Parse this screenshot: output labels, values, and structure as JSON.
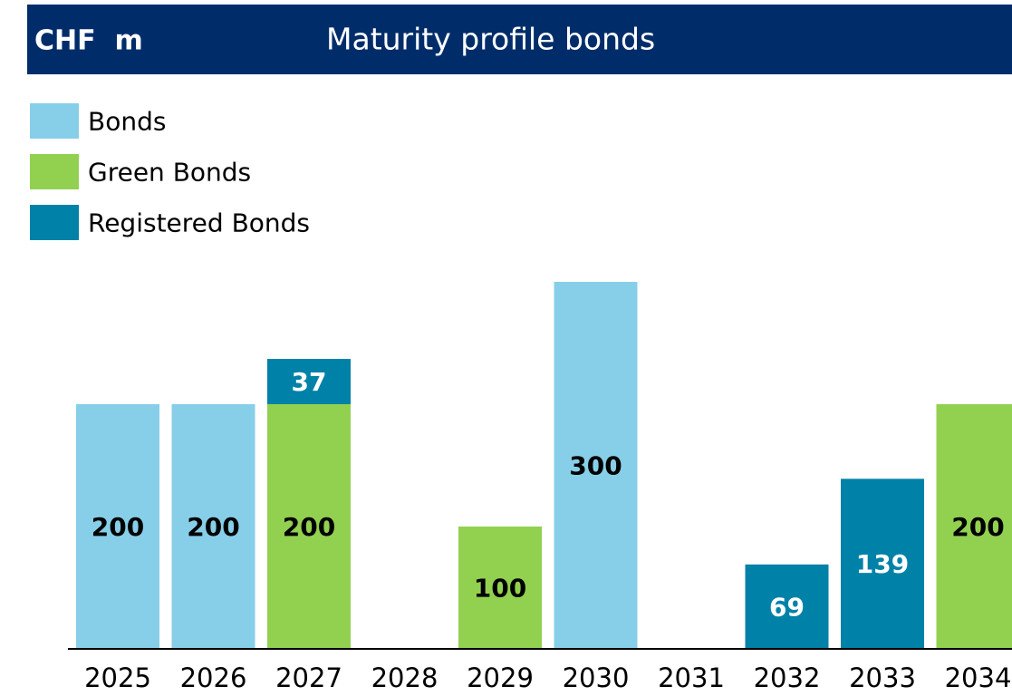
{
  "chart_data": {
    "type": "bar",
    "stacked": true,
    "unit_label": "CHF  m",
    "title": "Maturity profile bonds",
    "categories": [
      "2025",
      "2026",
      "2027",
      "2028",
      "2029",
      "2030",
      "2031",
      "2032",
      "2033",
      "2034"
    ],
    "series": [
      {
        "name": "Bonds",
        "color": "#87cfe8",
        "values": [
          200,
          200,
          null,
          null,
          null,
          300,
          null,
          null,
          null,
          null
        ]
      },
      {
        "name": "Green Bonds",
        "color": "#92d050",
        "values": [
          null,
          null,
          200,
          null,
          100,
          null,
          null,
          null,
          null,
          200
        ]
      },
      {
        "name": "Registered Bonds",
        "color": "#0081a8",
        "values": [
          null,
          null,
          37,
          null,
          null,
          null,
          null,
          69,
          139,
          null
        ]
      }
    ],
    "ylim": [
      0,
      300
    ]
  }
}
